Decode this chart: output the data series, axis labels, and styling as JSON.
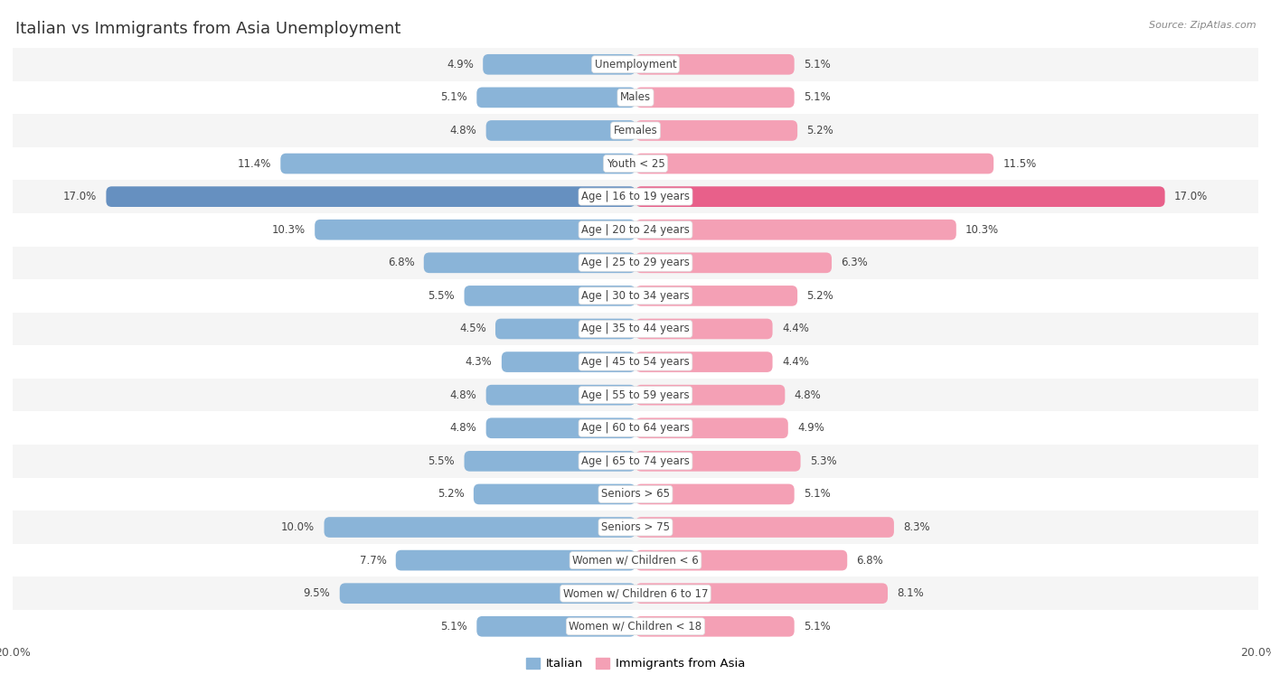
{
  "title": "Italian vs Immigrants from Asia Unemployment",
  "source": "Source: ZipAtlas.com",
  "categories": [
    "Unemployment",
    "Males",
    "Females",
    "Youth < 25",
    "Age | 16 to 19 years",
    "Age | 20 to 24 years",
    "Age | 25 to 29 years",
    "Age | 30 to 34 years",
    "Age | 35 to 44 years",
    "Age | 45 to 54 years",
    "Age | 55 to 59 years",
    "Age | 60 to 64 years",
    "Age | 65 to 74 years",
    "Seniors > 65",
    "Seniors > 75",
    "Women w/ Children < 6",
    "Women w/ Children 6 to 17",
    "Women w/ Children < 18"
  ],
  "italian": [
    4.9,
    5.1,
    4.8,
    11.4,
    17.0,
    10.3,
    6.8,
    5.5,
    4.5,
    4.3,
    4.8,
    4.8,
    5.5,
    5.2,
    10.0,
    7.7,
    9.5,
    5.1
  ],
  "immigrants": [
    5.1,
    5.1,
    5.2,
    11.5,
    17.0,
    10.3,
    6.3,
    5.2,
    4.4,
    4.4,
    4.8,
    4.9,
    5.3,
    5.1,
    8.3,
    6.8,
    8.1,
    5.1
  ],
  "italian_color": "#8ab4d8",
  "immigrants_color": "#f4a0b5",
  "italian_highlight": "#6690c0",
  "immigrants_highlight": "#e8608a",
  "background_color": "#ffffff",
  "row_bg_even": "#f5f5f5",
  "row_bg_odd": "#ffffff",
  "max_value": 20.0,
  "legend_italian": "Italian",
  "legend_immigrants": "Immigrants from Asia",
  "title_fontsize": 13,
  "label_fontsize": 8.5,
  "value_fontsize": 8.5
}
